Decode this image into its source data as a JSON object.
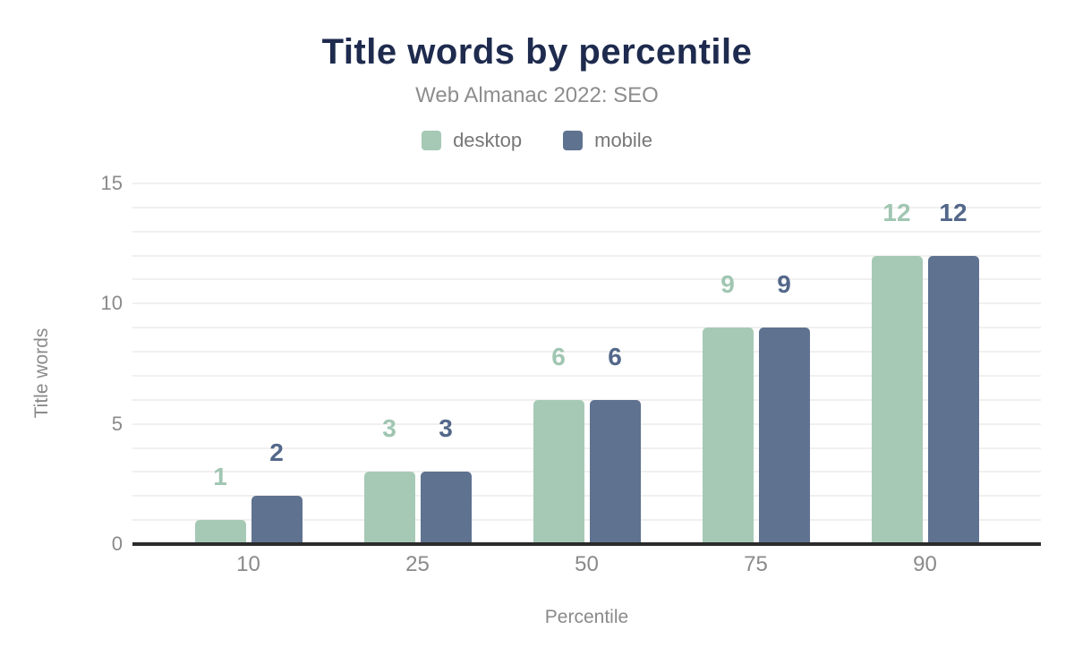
{
  "chart_data": {
    "type": "bar",
    "title": "Title words by percentile",
    "subtitle": "Web Almanac 2022: SEO",
    "xlabel": "Percentile",
    "ylabel": "Title words",
    "categories": [
      "10",
      "25",
      "50",
      "75",
      "90"
    ],
    "series": [
      {
        "name": "desktop",
        "color": "#a6c9b6",
        "label_color": "#a0c6b2",
        "values": [
          1,
          3,
          6,
          9,
          12
        ]
      },
      {
        "name": "mobile",
        "color": "#5f7290",
        "label_color": "#53688a",
        "values": [
          2,
          3,
          6,
          9,
          12
        ]
      }
    ],
    "ylim": [
      0,
      15
    ],
    "yticks": [
      0,
      5,
      10,
      15
    ],
    "grid": "horizontal, every 1 unit",
    "legend_position": "top"
  },
  "colors": {
    "title": "#1e2b4e",
    "subtitle": "#8d8d8d",
    "legend_text": "#777777",
    "axis_text": "#8a8a8a",
    "axis_line": "#2b2b2b",
    "gridline": "#f2f0ef"
  }
}
